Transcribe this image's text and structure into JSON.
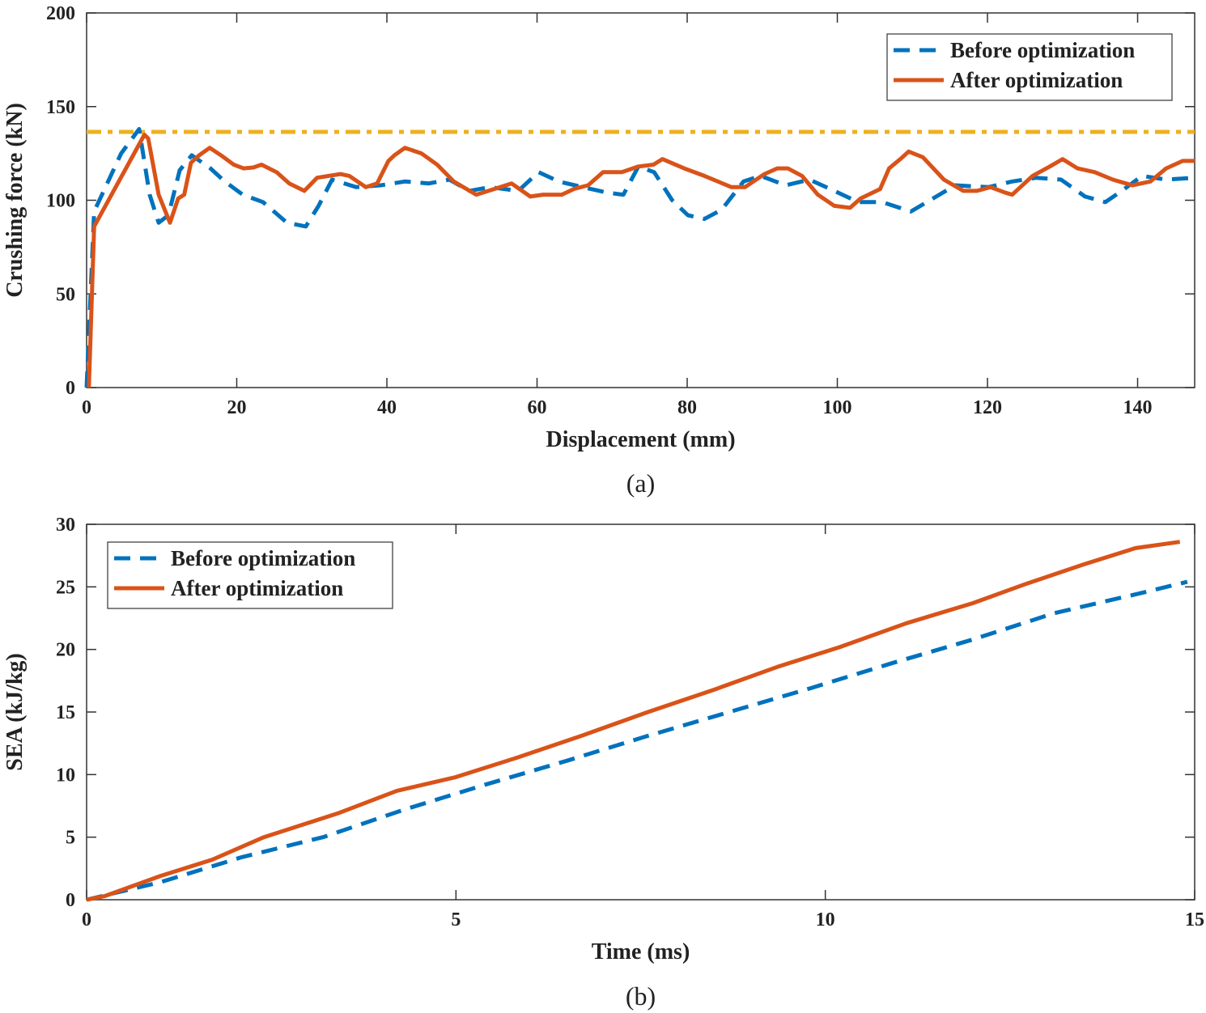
{
  "chart_data": [
    {
      "type": "line",
      "caption": "(a)",
      "xlabel": "Displacement (mm)",
      "ylabel": "Crushing force (kN)",
      "xlim": [
        0,
        147.6
      ],
      "ylim": [
        0,
        200
      ],
      "xticks": [
        0,
        20,
        40,
        60,
        80,
        100,
        120,
        140
      ],
      "yticks": [
        0,
        50,
        100,
        150,
        200
      ],
      "grid": false,
      "legend_placement": "top-right",
      "reference_line": {
        "y": 136.5,
        "style": "dash-dot",
        "color": "#EDB120"
      },
      "series": [
        {
          "name": "Before optimization",
          "style": "dashed",
          "color": "#0072BD",
          "x": [
            0,
            1,
            4.6,
            7,
            8.4,
            9.6,
            10.9,
            12.4,
            14,
            16.5,
            18.4,
            20.8,
            23.5,
            26.7,
            29.2,
            30.9,
            32.7,
            35.9,
            39.2,
            42.4,
            45.6,
            48.3,
            51,
            53.7,
            57.5,
            60.2,
            62.9,
            66.1,
            69.4,
            71.5,
            73.5,
            75.6,
            78,
            80.1,
            82.3,
            84.6,
            87.5,
            89.8,
            93.1,
            96.3,
            99.6,
            102.8,
            106,
            109.8,
            113.6,
            115.7,
            120.1,
            123.3,
            126.5,
            129.8,
            133,
            135.7,
            137.9,
            140.6,
            143.8,
            147.6
          ],
          "y": [
            0,
            94,
            125,
            138,
            103,
            88,
            92,
            116,
            124,
            117,
            110,
            103,
            99,
            88,
            86,
            97,
            111,
            107,
            108,
            110,
            109,
            111,
            105,
            107,
            105,
            115,
            110,
            107,
            104,
            103,
            118,
            115,
            100,
            92,
            90,
            95,
            110,
            113,
            108,
            111,
            105,
            99,
            99,
            94,
            103,
            108,
            107,
            110,
            112,
            111,
            102,
            99,
            105,
            113,
            111,
            112
          ]
        },
        {
          "name": "After optimization",
          "style": "solid",
          "color": "#D95319",
          "x": [
            0.3,
            1,
            7.7,
            8.2,
            9.6,
            11.1,
            12.2,
            13,
            13.9,
            15,
            16.4,
            17.9,
            19.6,
            20.9,
            22.2,
            23.3,
            25.3,
            27,
            29,
            30.7,
            33.8,
            35,
            37.2,
            38.7,
            40.2,
            41,
            42.4,
            44.6,
            46.7,
            48.9,
            51.9,
            54.3,
            56.6,
            59.1,
            60.8,
            63.3,
            64.9,
            66.8,
            68.8,
            71.3,
            73.5,
            75.5,
            76.7,
            79.6,
            82.3,
            85.9,
            87.7,
            90.3,
            92,
            93.4,
            95.3,
            97.4,
            99.6,
            101.7,
            103.1,
            105.7,
            106.9,
            108.4,
            109.5,
            111.4,
            114.2,
            116.8,
            118.6,
            120.4,
            122.4,
            123.3,
            126,
            128.3,
            130,
            132,
            134.3,
            136.7,
            139.3,
            141.7,
            143.8,
            146,
            147.6
          ],
          "y": [
            0,
            86,
            135,
            133,
            103,
            88,
            101,
            103,
            120,
            124,
            128,
            124,
            119,
            117,
            117.5,
            119,
            115,
            109,
            105,
            112,
            114,
            113,
            107,
            109,
            121,
            124,
            128,
            125,
            119,
            110,
            103,
            106,
            109,
            102,
            103,
            103,
            106,
            108,
            115,
            115,
            118,
            119,
            122,
            117,
            113,
            107,
            107,
            114,
            117,
            117,
            113,
            103,
            97,
            96,
            101,
            106,
            117,
            122,
            126,
            123,
            111,
            105,
            105,
            107,
            104,
            103,
            113,
            118,
            122,
            117,
            115,
            111,
            108,
            110,
            117,
            121,
            121
          ]
        }
      ]
    },
    {
      "type": "line",
      "caption": "(b)",
      "xlabel": "Time (ms)",
      "ylabel": "SEA (kJ/kg)",
      "xlim": [
        0,
        15
      ],
      "ylim": [
        0,
        30
      ],
      "xticks": [
        0,
        5,
        10,
        15
      ],
      "yticks": [
        0,
        5,
        10,
        15,
        20,
        25,
        30
      ],
      "grid": false,
      "legend_placement": "top-left",
      "series": [
        {
          "name": "Before optimization",
          "style": "dashed",
          "color": "#0072BD",
          "x": [
            0,
            1,
            2.1,
            3.2,
            4.3,
            5.4,
            6.5,
            7.6,
            8.7,
            9.8,
            10.9,
            12,
            13.1,
            14.2,
            14.9
          ],
          "y": [
            0,
            1.4,
            3.4,
            5.0,
            7.2,
            9.2,
            11.1,
            13.1,
            15.0,
            16.9,
            18.9,
            20.8,
            22.9,
            24.4,
            25.4
          ]
        },
        {
          "name": "After optimization",
          "style": "solid",
          "color": "#D95319",
          "x": [
            0,
            0.25,
            1,
            1.7,
            2.4,
            3.4,
            4.2,
            5,
            5.8,
            6.7,
            7.6,
            8.5,
            9.35,
            10.2,
            11.1,
            12,
            12.7,
            13.5,
            14.2,
            14.8
          ],
          "y": [
            0,
            0.3,
            1.9,
            3.2,
            5.0,
            6.9,
            8.7,
            9.8,
            11.3,
            13.1,
            15.0,
            16.8,
            18.6,
            20.2,
            22.1,
            23.7,
            25.2,
            26.8,
            28.1,
            28.6
          ]
        }
      ]
    }
  ]
}
